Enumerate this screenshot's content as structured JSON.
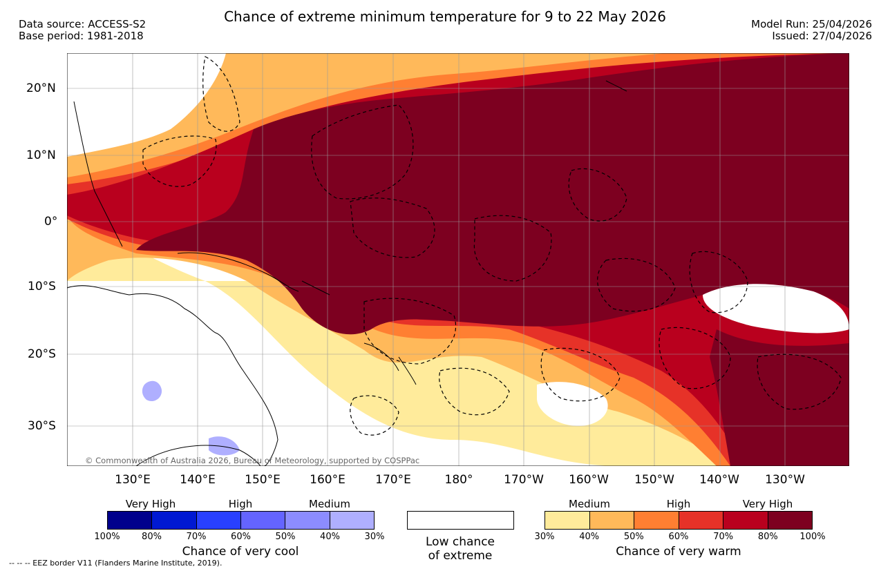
{
  "header": {
    "title": "Chance of extreme minimum temperature for 9 to 22 May 2026",
    "data_source": "Data source: ACCESS-S2",
    "base_period": "Base period: 1981-2018",
    "model_run": "Model Run: 25/04/2026",
    "issued": "Issued: 27/04/2026"
  },
  "map": {
    "lat_labels": [
      "20°N",
      "10°N",
      "0°",
      "10°S",
      "20°S",
      "30°S"
    ],
    "lon_labels": [
      "130°E",
      "140°E",
      "150°E",
      "160°E",
      "170°E",
      "180°",
      "170°W",
      "160°W",
      "150°W",
      "140°W",
      "130°W"
    ],
    "copyright": "© Commonwealth of Australia 2026, Bureau of Meteorology, supported by COSPPac"
  },
  "legend_cool": {
    "group_labels": [
      "Very High",
      "High",
      "Medium"
    ],
    "colors": [
      "#00008c",
      "#0019d2",
      "#2840ff",
      "#6464ff",
      "#8c8cff",
      "#afafff"
    ],
    "ticks": [
      "100%",
      "80%",
      "70%",
      "60%",
      "50%",
      "40%",
      "30%"
    ],
    "title": "Chance of very cool"
  },
  "legend_low": {
    "title_line1": "Low chance",
    "title_line2": "of extreme"
  },
  "legend_warm": {
    "group_labels": [
      "Medium",
      "High",
      "Very High"
    ],
    "colors": [
      "#ffeb9b",
      "#ffb95a",
      "#ff7f32",
      "#e63228",
      "#b9001e",
      "#7d0020"
    ],
    "ticks": [
      "30%",
      "40%",
      "50%",
      "60%",
      "70%",
      "80%",
      "100%"
    ],
    "title": "Chance of very warm"
  },
  "footer": {
    "eez_note": "--  --  -- EEZ border V11 (Flanders Marine Institute, 2019)."
  }
}
